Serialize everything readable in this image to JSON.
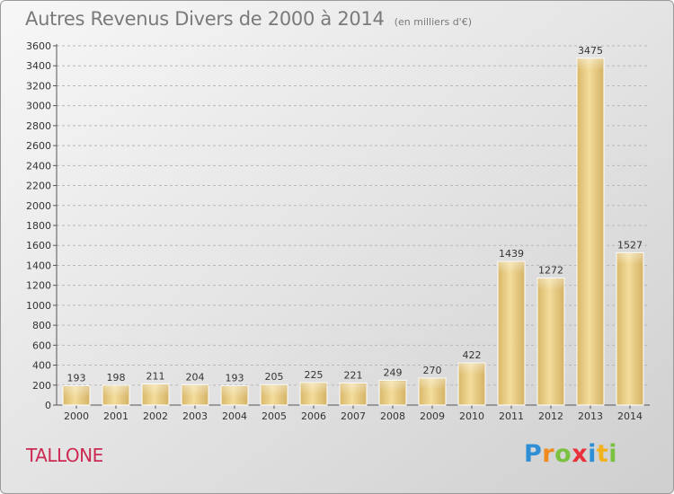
{
  "header": {
    "title": "Autres Revenus Divers de 2000 à 2014",
    "unit": "(en milliers d'€)"
  },
  "location": "TALLONE",
  "logo": {
    "letters": [
      "P",
      "r",
      "o",
      "x",
      "i",
      "t",
      "i"
    ],
    "colors": [
      "#2f8fd6",
      "#ef8a1e",
      "#7cc242",
      "#e8313a",
      "#2f8fd6",
      "#f2b21b",
      "#7cc242"
    ]
  },
  "chart_data": {
    "type": "bar",
    "title": "Autres Revenus Divers de 2000 à 2014",
    "subtitle": "(en milliers d'€)",
    "categories": [
      "2000",
      "2001",
      "2002",
      "2003",
      "2004",
      "2005",
      "2006",
      "2007",
      "2008",
      "2009",
      "2010",
      "2011",
      "2012",
      "2013",
      "2014"
    ],
    "values": [
      193,
      198,
      211,
      204,
      193,
      205,
      225,
      221,
      249,
      270,
      422,
      1439,
      1272,
      3475,
      1527
    ],
    "ylim": [
      0,
      3600
    ],
    "yticks": [
      0,
      200,
      400,
      600,
      800,
      1000,
      1200,
      1400,
      1600,
      1800,
      2000,
      2200,
      2400,
      2600,
      2800,
      3000,
      3200,
      3400,
      3600
    ],
    "grid": true,
    "bar_color": "#e9cd86",
    "xlabel": "",
    "ylabel": ""
  }
}
